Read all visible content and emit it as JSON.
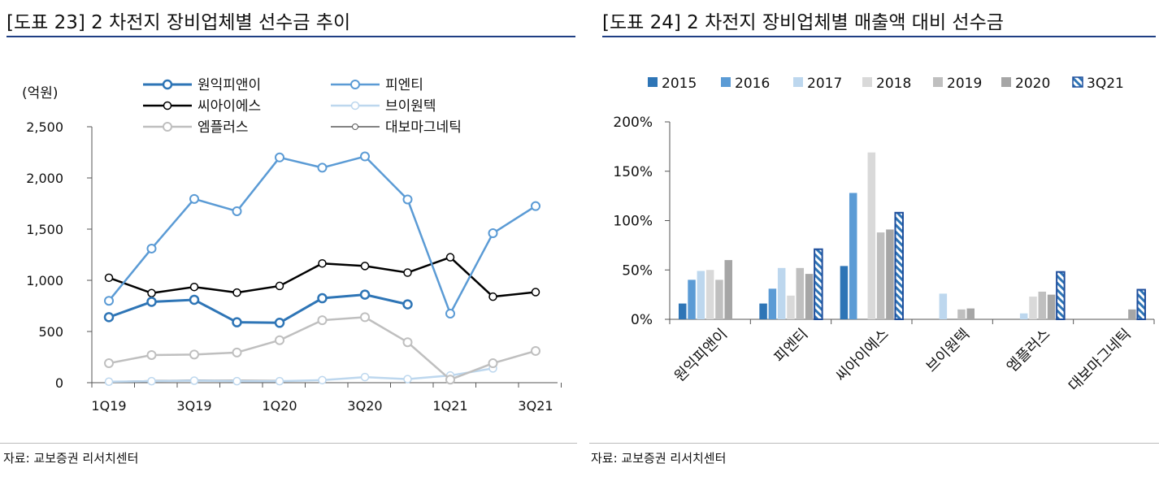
{
  "left": {
    "title": "[도표 23] 2 차전지 장비업체별 선수금 추이",
    "source": "자료: 교보증권 리서치센터",
    "chart_data": {
      "type": "line",
      "title": "[도표 23] 2 차전지 장비업체별 선수금 추이",
      "ylabel": "(억원)",
      "ylim": [
        0,
        2500
      ],
      "yticks": [
        "2,500",
        "2,000",
        "1,500",
        "1,000",
        "500",
        "0"
      ],
      "categories": [
        "1Q19",
        "2Q19",
        "3Q19",
        "4Q19",
        "1Q20",
        "2Q20",
        "3Q20",
        "4Q20",
        "1Q21",
        "2Q21",
        "3Q21"
      ],
      "xticklabels": [
        "1Q19",
        "3Q19",
        "1Q20",
        "3Q20",
        "1Q21",
        "3Q21"
      ],
      "legend": "top",
      "series": [
        {
          "name": "원익피앤이",
          "color": "#2e75b6",
          "values": [
            640,
            790,
            810,
            590,
            585,
            825,
            860,
            765,
            null,
            null,
            null
          ]
        },
        {
          "name": "피엔티",
          "color": "#5b9bd5",
          "values": [
            800,
            1310,
            1795,
            1675,
            2200,
            2100,
            2210,
            1790,
            675,
            1460,
            1725
          ]
        },
        {
          "name": "씨아이에스",
          "color": "#000000",
          "values": [
            1025,
            875,
            935,
            880,
            945,
            1165,
            1140,
            1075,
            1225,
            840,
            885
          ]
        },
        {
          "name": "브이원텍",
          "color": "#bdd7ee",
          "values": [
            10,
            15,
            20,
            15,
            15,
            25,
            55,
            35,
            70,
            140,
            null
          ]
        },
        {
          "name": "엠플러스",
          "color": "#bfbfbf",
          "values": [
            190,
            270,
            275,
            295,
            415,
            610,
            640,
            395,
            30,
            190,
            310
          ]
        },
        {
          "name": "대보마그네틱",
          "color": "#595959",
          "values": [
            10,
            20,
            25,
            22,
            20,
            null,
            null,
            null,
            null,
            null,
            null
          ]
        }
      ]
    }
  },
  "right": {
    "title": "[도표 24] 2 차전지 장비업체별 매출액 대비 선수금",
    "source": "자료: 교보증권 리서치센터",
    "chart_data": {
      "type": "bar",
      "title": "[도표 24] 2 차전지 장비업체별 매출액 대비 선수금",
      "ylim": [
        0,
        200
      ],
      "yticks": [
        "200%",
        "150%",
        "100%",
        "50%",
        "0%"
      ],
      "categories": [
        "원익피앤이",
        "피엔티",
        "씨아이에스",
        "브이원텍",
        "엠플러스",
        "대보마그네틱"
      ],
      "legend": "top",
      "series": [
        {
          "name": "2015",
          "color": "#2e75b6",
          "hatch": false,
          "values": [
            16,
            16,
            54,
            null,
            null,
            null
          ]
        },
        {
          "name": "2016",
          "color": "#5b9bd5",
          "hatch": false,
          "values": [
            40,
            31,
            128,
            null,
            null,
            null
          ]
        },
        {
          "name": "2017",
          "color": "#bdd7ee",
          "hatch": false,
          "values": [
            49,
            52,
            null,
            26,
            6,
            null
          ]
        },
        {
          "name": "2018",
          "color": "#d9d9d9",
          "hatch": false,
          "values": [
            50,
            24,
            169,
            null,
            23,
            null
          ]
        },
        {
          "name": "2019",
          "color": "#bfbfbf",
          "hatch": false,
          "values": [
            40,
            52,
            88,
            10,
            28,
            null
          ]
        },
        {
          "name": "2020",
          "color": "#a6a6a6",
          "hatch": false,
          "values": [
            60,
            46,
            91,
            11,
            25,
            10
          ]
        },
        {
          "name": "3Q21",
          "color": "#2e75b6",
          "hatch": true,
          "values": [
            null,
            71,
            108,
            null,
            48,
            30
          ]
        }
      ]
    }
  }
}
